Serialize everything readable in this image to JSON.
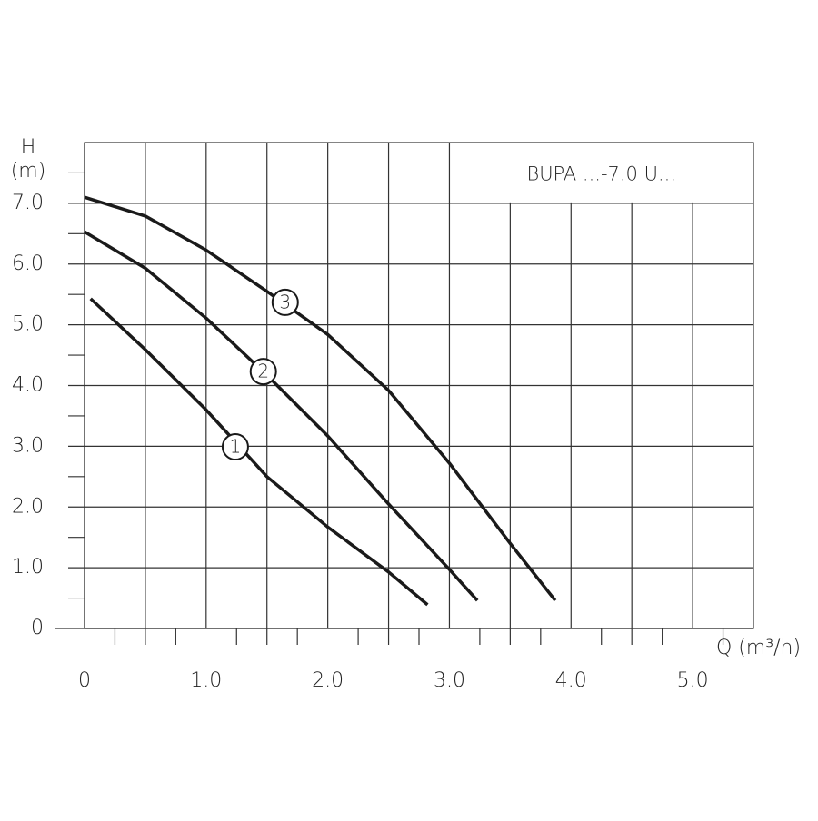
{
  "chart_data": {
    "type": "line",
    "title": "BUPA ...-7.0 U...",
    "ylabel_top": "H",
    "ylabel_unit": "(m)",
    "xlabel": "Q (m³/h)",
    "xlim": [
      0,
      5.5
    ],
    "ylim": [
      0,
      8
    ],
    "xticks": [
      0,
      {
        "value": 1,
        "label": "1.0"
      },
      {
        "value": 2,
        "label": "2.0"
      },
      {
        "value": 3,
        "label": "3.0"
      },
      {
        "value": 4,
        "label": "4.0"
      },
      {
        "value": 5,
        "label": "5.0"
      }
    ],
    "yticks": [
      0,
      {
        "value": 1,
        "label": "1.0"
      },
      {
        "value": 2,
        "label": "2.0"
      },
      {
        "value": 3,
        "label": "3.0"
      },
      {
        "value": 4,
        "label": "4.0"
      },
      {
        "value": 5,
        "label": "5.0"
      },
      {
        "value": 6,
        "label": "6.0"
      },
      {
        "value": 7,
        "label": "7.0"
      }
    ],
    "x_half_grid": [
      0.5,
      1.5,
      2.5,
      3.5,
      4.5
    ],
    "x_minor_ticks": [
      0.25,
      0.5,
      0.75,
      1.25,
      1.5,
      1.75,
      2.25,
      2.5,
      2.75,
      3.25,
      3.5,
      3.75,
      4.25,
      4.5,
      4.75,
      5.25
    ],
    "y_minor_ticks": [
      0.5,
      1.5,
      2.5,
      3.5,
      4.5,
      5.5,
      6.5,
      7.5
    ],
    "grid": true,
    "series": [
      {
        "name": "1",
        "color": "#1a1a1a",
        "label_x": 1.24,
        "label_y": 2.99,
        "x": [
          0.05,
          0.5,
          1.0,
          1.5,
          2.0,
          2.5,
          2.82
        ],
        "values": [
          5.43,
          4.59,
          3.6,
          2.5,
          1.67,
          0.93,
          0.39
        ]
      },
      {
        "name": "2",
        "color": "#1a1a1a",
        "label_x": 1.47,
        "label_y": 4.23,
        "x": [
          0.0,
          0.5,
          1.0,
          1.5,
          2.0,
          2.5,
          3.0,
          3.23
        ],
        "values": [
          6.53,
          5.93,
          5.11,
          4.17,
          3.17,
          2.05,
          0.97,
          0.46
        ]
      },
      {
        "name": "3",
        "color": "#1a1a1a",
        "label_x": 1.65,
        "label_y": 5.37,
        "x": [
          0.0,
          0.5,
          1.0,
          1.5,
          2.0,
          2.5,
          3.0,
          3.5,
          3.87
        ],
        "values": [
          7.1,
          6.79,
          6.23,
          5.55,
          4.84,
          3.92,
          2.72,
          1.4,
          0.46
        ]
      }
    ]
  }
}
